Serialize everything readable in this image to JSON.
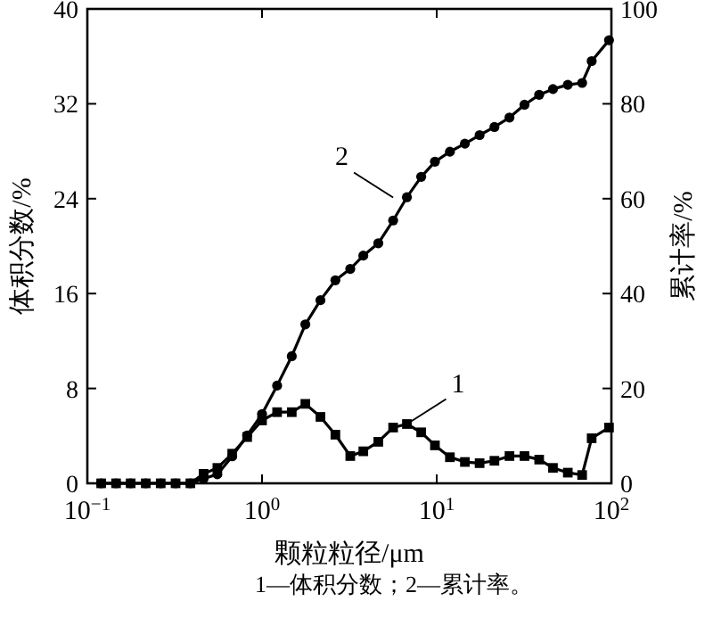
{
  "chart_data": {
    "type": "line",
    "xlabel": "颗粒粒径/μm",
    "ylabel": "体积分数/%",
    "y2label": "累计率/%",
    "log": "x",
    "line_style": "solid",
    "xlim": [
      0.1,
      100
    ],
    "xticks": [
      {
        "value": 0.1,
        "label": "10$^{−1}$"
      },
      {
        "value": 1,
        "label": "10$^{0}$"
      },
      {
        "value": 10,
        "label": "10$^{1}$"
      },
      {
        "value": 100,
        "label": "10$^{2}$"
      }
    ],
    "ylim": [
      0,
      40
    ],
    "yticks": [
      0,
      8,
      16,
      24,
      32,
      40
    ],
    "y2lim": [
      0,
      100
    ],
    "y2ticks": [
      0,
      20,
      40,
      60,
      80,
      100
    ],
    "x": [
      0.12,
      0.146,
      0.177,
      0.216,
      0.263,
      0.32,
      0.389,
      0.463,
      0.555,
      0.675,
      0.822,
      1.0,
      1.22,
      1.48,
      1.77,
      2.16,
      2.63,
      3.2,
      3.8,
      4.63,
      5.63,
      6.75,
      8.15,
      9.77,
      11.9,
      14.5,
      17.6,
      21.4,
      26.1,
      31.8,
      38.6,
      46.3,
      56.3,
      68.0,
      77.1,
      96.9
    ],
    "series": [
      {
        "color": "#000000",
        "marker": "square",
        "values": [
          0,
          0,
          0,
          0,
          0,
          0,
          0,
          0.8,
          1.3,
          2.5,
          3.9,
          5.3,
          6.0,
          6.0,
          6.7,
          5.6,
          4.1,
          2.3,
          2.7,
          3.5,
          4.7,
          5.0,
          4.3,
          3.2,
          2.2,
          1.8,
          1.7,
          1.9,
          2.3,
          2.3,
          2.0,
          1.3,
          0.9,
          0.7,
          3.8,
          4.7
        ]
      },
      {
        "color": "#000000",
        "marker": "circle",
        "axis": "y2",
        "values": [
          0,
          0,
          0,
          0,
          0,
          0,
          0,
          1,
          1.9,
          5.7,
          10.1,
          14.6,
          20.6,
          26.8,
          33.5,
          38.6,
          42.8,
          45.2,
          48,
          50.6,
          55.4,
          60.3,
          64.6,
          67.8,
          69.9,
          71.6,
          73.4,
          75.1,
          77.1,
          79.8,
          81.9,
          83.1,
          84.0,
          84.4,
          89,
          93.4
        ]
      }
    ],
    "annotations": [
      {
        "text": "1",
        "x": 6.75,
        "y": 5.0
      },
      {
        "text": "2",
        "x": 5.63,
        "y": 24.1
      },
      "1—体积分数；2—累计率。"
    ]
  }
}
